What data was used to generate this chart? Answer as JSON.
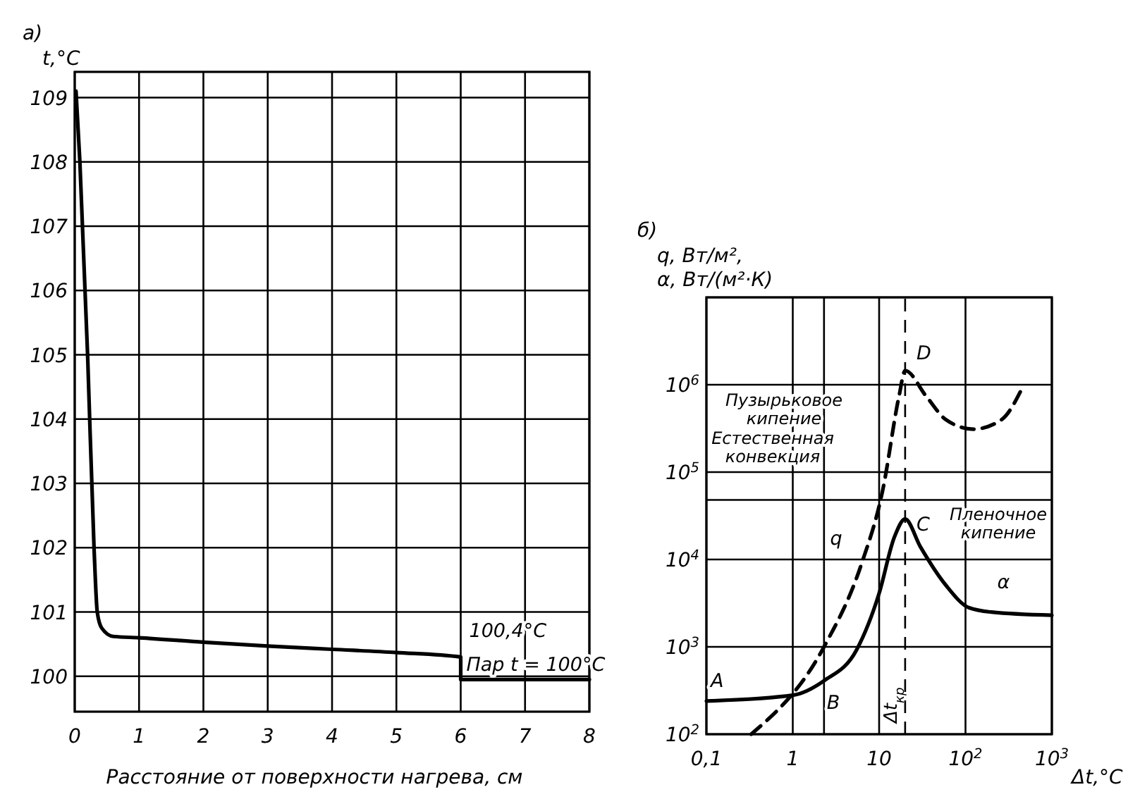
{
  "chart_data": [
    {
      "type": "line",
      "title": "а)",
      "xlabel": "Расстояние от поверхности нагрева, см",
      "ylabel": "t,°C",
      "xlim": [
        0,
        8
      ],
      "ylim": [
        99.45,
        109.4
      ],
      "xticks": [
        0,
        1,
        2,
        3,
        4,
        5,
        6,
        7,
        8
      ],
      "yticks": [
        100,
        101,
        102,
        103,
        104,
        105,
        106,
        107,
        108,
        109
      ],
      "grid": true,
      "series": [
        {
          "color": "#000000",
          "x": [
            0.02,
            0.08,
            0.2,
            0.3,
            0.35,
            0.42,
            0.6,
            1,
            2,
            3,
            4,
            5,
            6,
            6,
            7,
            8
          ],
          "values": [
            109.1,
            108,
            105,
            102,
            101,
            100.75,
            100.62,
            100.6,
            100.53,
            100.47,
            100.42,
            100.37,
            100.3,
            99.95,
            99.95,
            99.95
          ]
        }
      ],
      "annotations": [
        {
          "text": "100,4°C",
          "x": 6,
          "y": 100.3
        },
        {
          "text": "Пар t = 100°C",
          "x": 6,
          "y": 99.95
        }
      ]
    },
    {
      "type": "line",
      "title": "б)",
      "xlabel": "Δt,°C",
      "ylabel": "q, Вт/м²,\nα, Вт/(м²·К)",
      "log": "xy",
      "xlim": [
        0.1,
        1000
      ],
      "ylim": [
        100,
        10000000
      ],
      "xticks": [
        {
          "value": 0.1,
          "label": "0,1"
        },
        1,
        10,
        {
          "value": 100,
          "label": "10$^{2}$"
        },
        {
          "value": 1000,
          "label": "10$^{3}$"
        }
      ],
      "yticks": [
        {
          "value": 100,
          "label": "10$^{2}$"
        },
        {
          "value": 1000,
          "label": "10$^{3}$"
        },
        {
          "value": 10000,
          "label": "10$^{4}$"
        },
        {
          "value": 100000,
          "label": "10$^{5}$"
        },
        {
          "value": 1000000,
          "label": "10$^{6}$"
        },
        {
          "value": 10000000,
          "label": null
        }
      ],
      "grid": true,
      "series": [
        {
          "color": "#000000",
          "line_style": "dashed",
          "x": [
            0.33,
            2.3,
            6.2,
            11,
            17,
            20,
            35,
            59,
            123,
            263,
            457
          ],
          "values": [
            100,
            1000,
            8700,
            62000,
            740000,
            1450000,
            740000,
            400000,
            310000,
            400000,
            930000
          ]
        },
        {
          "color": "#000000",
          "line_style": "solid",
          "x": [
            0.1,
            1,
            2.3,
            5.5,
            10,
            15,
            20,
            30,
            59,
            110,
            200,
            1000
          ],
          "values": [
            240,
            280,
            410,
            930,
            4100,
            18000,
            29000,
            14000,
            5100,
            2800,
            2500,
            2300
          ]
        }
      ],
      "ref_lines": [
        {
          "axis": "x",
          "value": 2.3,
          "label": null,
          "line_style": "solid"
        },
        {
          "axis": "x",
          "value": 20,
          "label": "Δt$_{кр}$",
          "line_style": "dashed"
        },
        {
          "axis": "y",
          "value": 48000,
          "label": null,
          "line_style": "solid"
        }
      ],
      "annotations": [
        {
          "text": "A",
          "x": 0.1,
          "y": 240
        },
        {
          "text": "B",
          "x": 2.3,
          "y": 410
        },
        {
          "text": "C",
          "x": 20,
          "y": 29000
        },
        {
          "text": "D",
          "x": 20,
          "y": 1450000
        },
        {
          "text": "q",
          "x": 6.2,
          "y": 8700
        },
        {
          "text": "α",
          "x": 110,
          "y": 2800
        },
        "Пузырьковое кипение",
        "Естественная конвекция",
        "Пленочное кипение"
      ]
    }
  ]
}
